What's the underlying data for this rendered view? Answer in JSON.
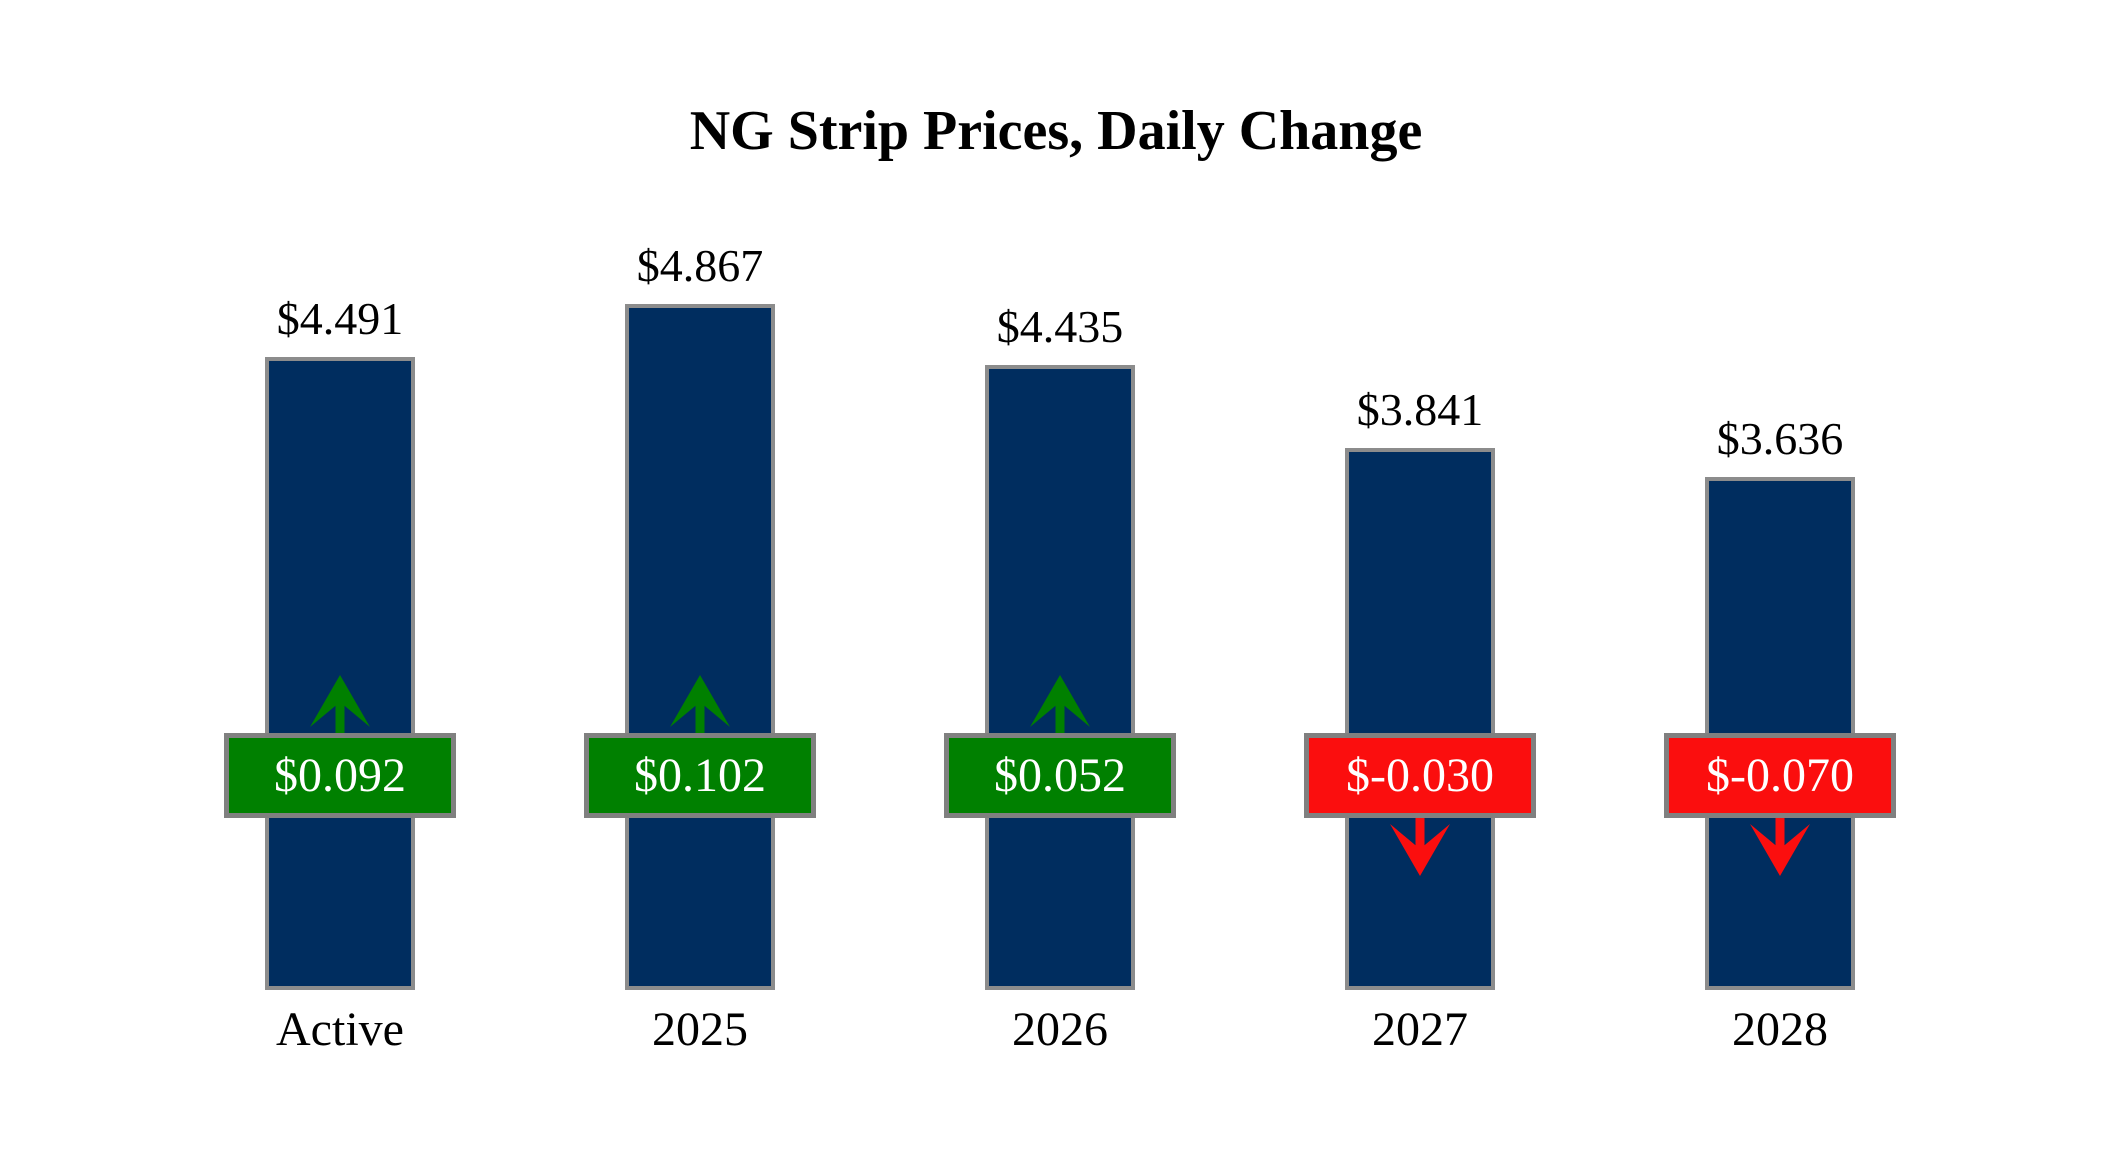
{
  "title": "NG Strip Prices, Daily Change",
  "colors": {
    "background": "#FFFFFF",
    "bar_fill": "#002D5F",
    "bar_border": "#8C8C8C",
    "positive": "#008000",
    "negative": "#FB0E0E",
    "badge_border": "#808080",
    "badge_text": "#FFFFFF",
    "label_text": "#000000"
  },
  "chart_data": {
    "type": "bar",
    "title": "NG Strip Prices, Daily Change",
    "categories": [
      "Active",
      "2025",
      "2026",
      "2027",
      "2028"
    ],
    "series": [
      {
        "name": "strip_price",
        "values": [
          4.491,
          4.867,
          4.435,
          3.841,
          3.636
        ]
      },
      {
        "name": "daily_change",
        "values": [
          0.092,
          0.102,
          0.052,
          -0.03,
          -0.07
        ]
      }
    ],
    "ylim": [
      0,
      5
    ],
    "grid": false,
    "legend": "none",
    "bars": [
      {
        "category": "Active",
        "value": 4.491,
        "value_label": "$4.491",
        "change": 0.092,
        "change_label": "$0.092",
        "direction": "up"
      },
      {
        "category": "2025",
        "value": 4.867,
        "value_label": "$4.867",
        "change": 0.102,
        "change_label": "$0.102",
        "direction": "up"
      },
      {
        "category": "2026",
        "value": 4.435,
        "value_label": "$4.435",
        "change": 0.052,
        "change_label": "$0.052",
        "direction": "up"
      },
      {
        "category": "2027",
        "value": 3.841,
        "value_label": "$3.841",
        "change": -0.03,
        "change_label": "$-0.030",
        "direction": "down"
      },
      {
        "category": "2028",
        "value": 3.636,
        "value_label": "$3.636",
        "change": -0.07,
        "change_label": "$-0.070",
        "direction": "down"
      }
    ]
  }
}
